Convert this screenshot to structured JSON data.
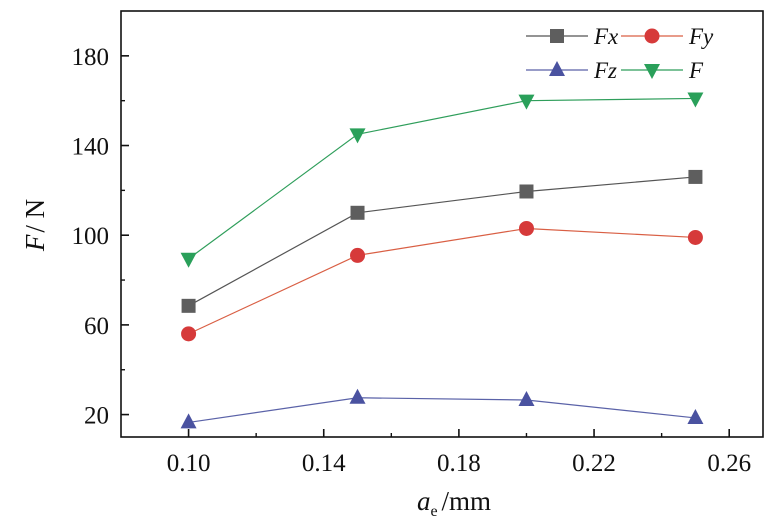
{
  "chart_data": {
    "type": "line",
    "title": "",
    "xlabel": {
      "main": "a",
      "sub": "e",
      "unit": "/mm"
    },
    "ylabel": {
      "main": "F",
      "unit": "/ N"
    },
    "xlim": [
      0.08,
      0.27
    ],
    "ylim": [
      10,
      200
    ],
    "xticks": [
      0.1,
      0.14,
      0.18,
      0.22,
      0.26
    ],
    "xtick_labels": [
      "0.10",
      "0.14",
      "0.18",
      "0.22",
      "0.26"
    ],
    "yticks": [
      20,
      60,
      100,
      140,
      180
    ],
    "ytick_labels": [
      "20",
      "60",
      "100",
      "140",
      "180"
    ],
    "grid": false,
    "legend_position": "top-right",
    "x": [
      0.1,
      0.15,
      0.2,
      0.25
    ],
    "series": [
      {
        "name": "Fx",
        "values": [
          68.5,
          110,
          119.5,
          126
        ],
        "line_color": "#555555",
        "marker_color": "#5e5e5e",
        "marker": "square"
      },
      {
        "name": "Fy",
        "values": [
          56,
          91,
          103,
          99
        ],
        "line_color": "#d95f44",
        "marker_color": "#d63a3a",
        "marker": "circle"
      },
      {
        "name": "Fz",
        "values": [
          16.5,
          27.5,
          26.5,
          18.5
        ],
        "line_color": "#5a62a8",
        "marker_color": "#4a52a0",
        "marker": "triangle-up"
      },
      {
        "name": "F",
        "values": [
          89.5,
          145,
          160,
          161
        ],
        "line_color": "#2f9e5b",
        "marker_color": "#2aa05a",
        "marker": "triangle-down"
      }
    ]
  }
}
